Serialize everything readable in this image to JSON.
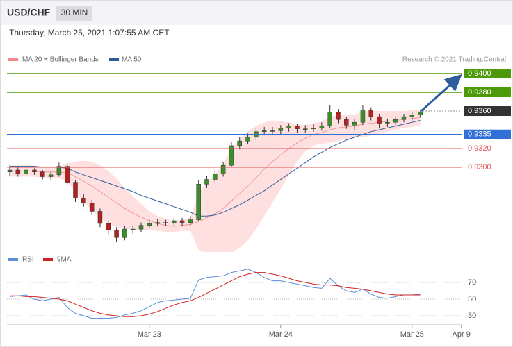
{
  "header": {
    "symbol": "USD/CHF",
    "interval": "30 MIN",
    "timestamp": "Thursday, March 25, 2021 1:07:55 AM CET"
  },
  "chart_data": [
    {
      "type": "candlestick",
      "credit": "Research © 2021 Trading.Central",
      "ylim": [
        0.921,
        0.941
      ],
      "candles": {
        "up_color": "#3a8f2a",
        "down_color": "#b22222",
        "wick_color": "#333333",
        "values": [
          [
            0.9295,
            0.9302,
            0.9291,
            0.9297
          ],
          [
            0.9297,
            0.93,
            0.929,
            0.9293
          ],
          [
            0.9293,
            0.9301,
            0.9291,
            0.9297
          ],
          [
            0.9297,
            0.9299,
            0.9292,
            0.9295
          ],
          [
            0.9295,
            0.9297,
            0.9287,
            0.929
          ],
          [
            0.929,
            0.9295,
            0.9287,
            0.9292
          ],
          [
            0.9292,
            0.9305,
            0.929,
            0.9301
          ],
          [
            0.9301,
            0.9303,
            0.9281,
            0.9284
          ],
          [
            0.9284,
            0.9286,
            0.9263,
            0.9267
          ],
          [
            0.9267,
            0.9271,
            0.9258,
            0.9262
          ],
          [
            0.9262,
            0.9265,
            0.9249,
            0.9253
          ],
          [
            0.9253,
            0.9256,
            0.9236,
            0.924
          ],
          [
            0.924,
            0.9243,
            0.9228,
            0.9233
          ],
          [
            0.9233,
            0.9236,
            0.922,
            0.9225
          ],
          [
            0.9225,
            0.9237,
            0.9222,
            0.9234
          ],
          [
            0.9234,
            0.9238,
            0.9229,
            0.9234
          ],
          [
            0.9234,
            0.9241,
            0.9231,
            0.9238
          ],
          [
            0.9238,
            0.9244,
            0.9235,
            0.924
          ],
          [
            0.924,
            0.9245,
            0.9237,
            0.9241
          ],
          [
            0.9241,
            0.9244,
            0.9237,
            0.9241
          ],
          [
            0.9241,
            0.9246,
            0.9238,
            0.9243
          ],
          [
            0.9243,
            0.9246,
            0.9237,
            0.9241
          ],
          [
            0.9241,
            0.9248,
            0.9238,
            0.9244
          ],
          [
            0.9244,
            0.9286,
            0.9243,
            0.9282
          ],
          [
            0.9282,
            0.9291,
            0.9278,
            0.9287
          ],
          [
            0.9287,
            0.9297,
            0.9284,
            0.9293
          ],
          [
            0.9293,
            0.9306,
            0.929,
            0.9302
          ],
          [
            0.9302,
            0.9327,
            0.93,
            0.9323
          ],
          [
            0.9323,
            0.9332,
            0.9319,
            0.9328
          ],
          [
            0.9328,
            0.9336,
            0.9325,
            0.9332
          ],
          [
            0.9332,
            0.9342,
            0.9329,
            0.9338
          ],
          [
            0.9338,
            0.9343,
            0.9334,
            0.9339
          ],
          [
            0.9339,
            0.9343,
            0.9334,
            0.9339
          ],
          [
            0.9339,
            0.9345,
            0.9335,
            0.9342
          ],
          [
            0.9342,
            0.9347,
            0.9338,
            0.9344
          ],
          [
            0.9344,
            0.9346,
            0.9337,
            0.9341
          ],
          [
            0.9341,
            0.9345,
            0.9337,
            0.9341
          ],
          [
            0.9341,
            0.9346,
            0.9338,
            0.9342
          ],
          [
            0.9342,
            0.9348,
            0.9339,
            0.9344
          ],
          [
            0.9344,
            0.9366,
            0.9342,
            0.9359
          ],
          [
            0.9359,
            0.9362,
            0.9347,
            0.9351
          ],
          [
            0.9351,
            0.9354,
            0.9341,
            0.9345
          ],
          [
            0.9345,
            0.9352,
            0.934,
            0.9348
          ],
          [
            0.9348,
            0.9366,
            0.9345,
            0.9361
          ],
          [
            0.9361,
            0.9364,
            0.935,
            0.9354
          ],
          [
            0.9354,
            0.9357,
            0.9342,
            0.9347
          ],
          [
            0.9347,
            0.9352,
            0.9343,
            0.9348
          ],
          [
            0.9348,
            0.9354,
            0.9345,
            0.9351
          ],
          [
            0.9351,
            0.9357,
            0.9348,
            0.9354
          ],
          [
            0.9354,
            0.9359,
            0.935,
            0.9356
          ],
          [
            0.9356,
            0.9361,
            0.9353,
            0.9359
          ]
        ]
      },
      "series": [
        {
          "name": "MA 20 + Bollinger Bands",
          "color": "#f08a8a",
          "band_color": "#fde0df",
          "values": [
            0.9296,
            0.9296,
            0.9296,
            0.9296,
            0.9295,
            0.9295,
            0.9295,
            0.9294,
            0.929,
            0.9285,
            0.928,
            0.9274,
            0.9268,
            0.9262,
            0.9256,
            0.9251,
            0.9247,
            0.9243,
            0.924,
            0.9238,
            0.9237,
            0.9238,
            0.9239,
            0.9242,
            0.9246,
            0.925,
            0.9256,
            0.9264,
            0.9272,
            0.928,
            0.9289,
            0.9298,
            0.9306,
            0.9313,
            0.932,
            0.9326,
            0.9331,
            0.9335,
            0.9337,
            0.934,
            0.9342,
            0.9343,
            0.9344,
            0.9346,
            0.9347,
            0.9348,
            0.9349,
            0.935,
            0.9351,
            0.9352,
            0.9353
          ],
          "upper": [
            0.9302,
            0.9302,
            0.9302,
            0.9302,
            0.9301,
            0.9301,
            0.9301,
            0.9304,
            0.9306,
            0.9307,
            0.9306,
            0.9302,
            0.9296,
            0.9288,
            0.9278,
            0.9269,
            0.9261,
            0.9253,
            0.9248,
            0.9245,
            0.9243,
            0.9244,
            0.9246,
            0.9272,
            0.9284,
            0.9292,
            0.9304,
            0.9319,
            0.933,
            0.9338,
            0.9344,
            0.9348,
            0.935,
            0.9349,
            0.9348,
            0.9346,
            0.9345,
            0.9347,
            0.9349,
            0.9354,
            0.9356,
            0.9356,
            0.9356,
            0.936,
            0.936,
            0.936,
            0.936,
            0.936,
            0.936,
            0.9361,
            0.9361
          ],
          "lower": [
            0.929,
            0.929,
            0.929,
            0.929,
            0.9289,
            0.9289,
            0.9289,
            0.9284,
            0.9274,
            0.9263,
            0.9254,
            0.9246,
            0.924,
            0.9236,
            0.9234,
            0.9233,
            0.9233,
            0.9233,
            0.9232,
            0.9231,
            0.9231,
            0.9232,
            0.9232,
            0.9212,
            0.9208,
            0.9208,
            0.9208,
            0.9209,
            0.9214,
            0.9222,
            0.9234,
            0.9248,
            0.9262,
            0.9277,
            0.9292,
            0.9306,
            0.9317,
            0.9323,
            0.9325,
            0.9326,
            0.9328,
            0.933,
            0.9332,
            0.9332,
            0.9334,
            0.9336,
            0.9338,
            0.934,
            0.9342,
            0.9343,
            0.9345
          ]
        },
        {
          "name": "MA 50",
          "color": "#2e5d9e",
          "values": [
            0.9301,
            0.9301,
            0.9301,
            0.9301,
            0.93,
            0.93,
            0.93,
            0.9299,
            0.9295,
            0.9292,
            0.9289,
            0.9286,
            0.9283,
            0.928,
            0.9277,
            0.9274,
            0.927,
            0.9267,
            0.9264,
            0.9261,
            0.9258,
            0.9255,
            0.9252,
            0.9248,
            0.9248,
            0.9249,
            0.9252,
            0.9256,
            0.926,
            0.9265,
            0.927,
            0.9275,
            0.9281,
            0.9287,
            0.9293,
            0.9299,
            0.9305,
            0.9311,
            0.9316,
            0.9321,
            0.9325,
            0.9329,
            0.9332,
            0.9335,
            0.9338,
            0.934,
            0.9342,
            0.9344,
            0.9346,
            0.9348,
            0.935
          ]
        }
      ],
      "levels": [
        {
          "value": 0.94,
          "label": "0.9400",
          "color": "#4c9a0a",
          "style": "box",
          "line": "solid"
        },
        {
          "value": 0.938,
          "label": "0.9380",
          "color": "#4c9a0a",
          "style": "box",
          "line": "solid"
        },
        {
          "value": 0.936,
          "label": "0.9360",
          "color": "#333333",
          "style": "box",
          "line": "dotted"
        },
        {
          "value": 0.9335,
          "label": "0.9335",
          "color": "#2f6fd6",
          "style": "box",
          "line": "solid"
        },
        {
          "value": 0.932,
          "label": "0.9320",
          "color": "#e05555",
          "style": "text",
          "line": "solid"
        },
        {
          "value": 0.93,
          "label": "0.9300",
          "color": "#e05555",
          "style": "text",
          "line": "solid"
        }
      ]
    },
    {
      "type": "line",
      "categories": [
        null,
        null,
        null,
        null,
        null,
        null,
        null,
        null,
        null,
        null,
        null,
        null,
        null,
        null,
        null,
        null,
        null,
        "Mar 23",
        null,
        null,
        null,
        null,
        null,
        null,
        null,
        null,
        null,
        null,
        null,
        null,
        null,
        null,
        null,
        "Mar 24",
        null,
        null,
        null,
        null,
        null,
        null,
        null,
        null,
        null,
        null,
        null,
        null,
        null,
        null,
        null,
        "Mar 25",
        null,
        null,
        null,
        null,
        null,
        "Apr 9"
      ],
      "ylim": [
        20,
        90
      ],
      "yticks": [
        30,
        50,
        70
      ],
      "grid": true,
      "series": [
        {
          "name": "RSI",
          "color": "#5b8dd9",
          "values": [
            53,
            54,
            55,
            50,
            48,
            50,
            52,
            40,
            33,
            30,
            27,
            27,
            27,
            28,
            31,
            33,
            36,
            41,
            46,
            48,
            49,
            50,
            51,
            73,
            76,
            77,
            78,
            82,
            84,
            86,
            82,
            76,
            72,
            72,
            70,
            68,
            66,
            64,
            63,
            75,
            66,
            60,
            58,
            62,
            56,
            52,
            51,
            53,
            55,
            55,
            56,
            null,
            null,
            null,
            null,
            null
          ]
        },
        {
          "name": "9MA",
          "color": "#d42020",
          "values": [
            54,
            54,
            53,
            53,
            52,
            51,
            50,
            48,
            44,
            40,
            36,
            33,
            31,
            30,
            29,
            29,
            30,
            32,
            35,
            39,
            43,
            46,
            48,
            52,
            57,
            62,
            67,
            72,
            77,
            80,
            82,
            82,
            80,
            78,
            75,
            72,
            70,
            68,
            67,
            67,
            66,
            64,
            63,
            62,
            60,
            58,
            56,
            55,
            55,
            55,
            55,
            null,
            null,
            null,
            null,
            null
          ]
        }
      ]
    }
  ]
}
